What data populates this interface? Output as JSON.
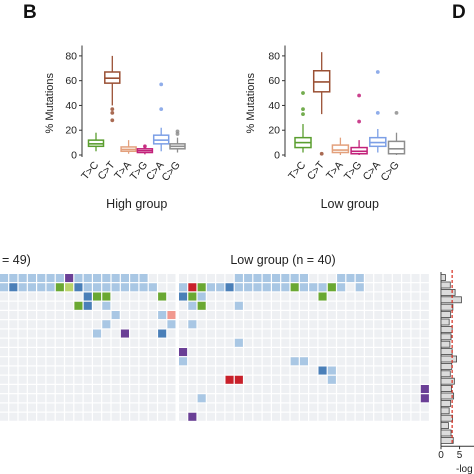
{
  "panel_b": {
    "letter": "B"
  },
  "panel_d": {
    "letter": "D"
  },
  "colors": {
    "T>C": "#5a9e2f",
    "C>T": "#9a5034",
    "T>A": "#e3a07c",
    "T>G": "#c2217a",
    "C>A": "#7c9fe6",
    "C>G": "#8e8e8e",
    "heat_empty": "#eef0f3",
    "heat_light": "#a9c7e4",
    "heat_mid": "#4a7fb8",
    "heat_green": "#6aa832",
    "heat_purple": "#6a3f96",
    "heat_red": "#c8202a",
    "heat_pink": "#f1998f",
    "heat_yellowgreen": "#b8d36a",
    "dashline": "#d62d20"
  },
  "chart_data": [
    {
      "type": "box",
      "title": "High group",
      "ylabel": "% Mutations",
      "ylim": [
        0,
        90
      ],
      "yticks": [
        0,
        20,
        40,
        60,
        80
      ],
      "categories": [
        "T>C",
        "C>T",
        "T>A",
        "T>G",
        "C>A",
        "C>G"
      ],
      "boxes": [
        {
          "min": 3,
          "q1": 7,
          "median": 9,
          "q3": 12,
          "max": 18,
          "outliers": []
        },
        {
          "min": 40,
          "q1": 58,
          "median": 62,
          "q3": 67,
          "max": 80,
          "outliers": [
            37,
            34,
            28
          ]
        },
        {
          "min": 1,
          "q1": 3,
          "median": 4.5,
          "q3": 6.5,
          "max": 12,
          "outliers": []
        },
        {
          "min": 0.5,
          "q1": 2,
          "median": 3.5,
          "q3": 5,
          "max": 8,
          "outliers": [
            7
          ]
        },
        {
          "min": 3,
          "q1": 9,
          "median": 12,
          "q3": 16,
          "max": 22,
          "outliers": [
            57,
            37
          ]
        },
        {
          "min": 2,
          "q1": 5,
          "median": 7,
          "q3": 9,
          "max": 14,
          "outliers": [
            19,
            17
          ]
        }
      ]
    },
    {
      "type": "box",
      "title": "Low group",
      "ylabel": "% Mutations",
      "ylim": [
        0,
        90
      ],
      "yticks": [
        0,
        20,
        40,
        60,
        80
      ],
      "categories": [
        "T>C",
        "C>T",
        "T>A",
        "T>G",
        "C>A",
        "C>G"
      ],
      "boxes": [
        {
          "min": 2,
          "q1": 6,
          "median": 10,
          "q3": 14,
          "max": 25,
          "outliers": [
            50,
            37,
            33
          ]
        },
        {
          "min": 33,
          "q1": 51,
          "median": 59,
          "q3": 68,
          "max": 83,
          "outliers": [
            1
          ]
        },
        {
          "min": 0,
          "q1": 2,
          "median": 4,
          "q3": 8,
          "max": 14,
          "outliers": []
        },
        {
          "min": 0,
          "q1": 1,
          "median": 3,
          "q3": 6,
          "max": 12,
          "outliers": [
            48,
            27
          ]
        },
        {
          "min": 2,
          "q1": 7,
          "median": 10,
          "q3": 14,
          "max": 21,
          "outliers": [
            67,
            34
          ]
        },
        {
          "min": 0,
          "q1": 1,
          "median": 5,
          "q3": 11,
          "max": 18,
          "outliers": [
            34
          ]
        }
      ]
    },
    {
      "type": "heatmap",
      "titles": [
        "= 49)",
        "Low group (n = 40)"
      ],
      "n_rows": 16,
      "left_cols": 19,
      "right_cols": 27,
      "cells": [
        {
          "g": "L",
          "r": 0,
          "c": 0,
          "k": "light"
        },
        {
          "g": "L",
          "r": 0,
          "c": 1,
          "k": "light"
        },
        {
          "g": "L",
          "r": 0,
          "c": 2,
          "k": "light"
        },
        {
          "g": "L",
          "r": 0,
          "c": 3,
          "k": "light"
        },
        {
          "g": "L",
          "r": 0,
          "c": 4,
          "k": "light"
        },
        {
          "g": "L",
          "r": 0,
          "c": 5,
          "k": "light"
        },
        {
          "g": "L",
          "r": 0,
          "c": 6,
          "k": "light"
        },
        {
          "g": "L",
          "r": 0,
          "c": 7,
          "k": "purple"
        },
        {
          "g": "L",
          "r": 0,
          "c": 8,
          "k": "light"
        },
        {
          "g": "L",
          "r": 0,
          "c": 9,
          "k": "light"
        },
        {
          "g": "L",
          "r": 0,
          "c": 10,
          "k": "light"
        },
        {
          "g": "L",
          "r": 0,
          "c": 11,
          "k": "light"
        },
        {
          "g": "L",
          "r": 0,
          "c": 12,
          "k": "light"
        },
        {
          "g": "L",
          "r": 0,
          "c": 13,
          "k": "light"
        },
        {
          "g": "L",
          "r": 0,
          "c": 14,
          "k": "light"
        },
        {
          "g": "L",
          "r": 0,
          "c": 15,
          "k": "light"
        },
        {
          "g": "L",
          "r": 1,
          "c": 0,
          "k": "light"
        },
        {
          "g": "L",
          "r": 1,
          "c": 1,
          "k": "mid"
        },
        {
          "g": "L",
          "r": 1,
          "c": 2,
          "k": "light"
        },
        {
          "g": "L",
          "r": 1,
          "c": 3,
          "k": "light"
        },
        {
          "g": "L",
          "r": 1,
          "c": 4,
          "k": "light"
        },
        {
          "g": "L",
          "r": 1,
          "c": 5,
          "k": "light"
        },
        {
          "g": "L",
          "r": 1,
          "c": 6,
          "k": "green"
        },
        {
          "g": "L",
          "r": 1,
          "c": 7,
          "k": "yellowgreen"
        },
        {
          "g": "L",
          "r": 1,
          "c": 8,
          "k": "mid"
        },
        {
          "g": "L",
          "r": 1,
          "c": 9,
          "k": "light"
        },
        {
          "g": "L",
          "r": 1,
          "c": 10,
          "k": "light"
        },
        {
          "g": "L",
          "r": 1,
          "c": 11,
          "k": "light"
        },
        {
          "g": "L",
          "r": 1,
          "c": 12,
          "k": "light"
        },
        {
          "g": "L",
          "r": 1,
          "c": 13,
          "k": "light"
        },
        {
          "g": "L",
          "r": 1,
          "c": 14,
          "k": "light"
        },
        {
          "g": "L",
          "r": 1,
          "c": 15,
          "k": "light"
        },
        {
          "g": "L",
          "r": 1,
          "c": 16,
          "k": "light"
        },
        {
          "g": "L",
          "r": 2,
          "c": 9,
          "k": "mid"
        },
        {
          "g": "L",
          "r": 2,
          "c": 10,
          "k": "green"
        },
        {
          "g": "L",
          "r": 2,
          "c": 11,
          "k": "green"
        },
        {
          "g": "L",
          "r": 2,
          "c": 17,
          "k": "green"
        },
        {
          "g": "L",
          "r": 3,
          "c": 8,
          "k": "green"
        },
        {
          "g": "L",
          "r": 3,
          "c": 9,
          "k": "mid"
        },
        {
          "g": "L",
          "r": 3,
          "c": 11,
          "k": "light"
        },
        {
          "g": "L",
          "r": 4,
          "c": 12,
          "k": "light"
        },
        {
          "g": "L",
          "r": 4,
          "c": 17,
          "k": "light"
        },
        {
          "g": "L",
          "r": 4,
          "c": 18,
          "k": "pink"
        },
        {
          "g": "L",
          "r": 5,
          "c": 11,
          "k": "light"
        },
        {
          "g": "L",
          "r": 5,
          "c": 18,
          "k": "light"
        },
        {
          "g": "L",
          "r": 6,
          "c": 10,
          "k": "light"
        },
        {
          "g": "L",
          "r": 6,
          "c": 13,
          "k": "purple"
        },
        {
          "g": "L",
          "r": 6,
          "c": 17,
          "k": "mid"
        },
        {
          "g": "R",
          "r": 0,
          "c": 6,
          "k": "light"
        },
        {
          "g": "R",
          "r": 0,
          "c": 7,
          "k": "light"
        },
        {
          "g": "R",
          "r": 0,
          "c": 8,
          "k": "light"
        },
        {
          "g": "R",
          "r": 0,
          "c": 9,
          "k": "light"
        },
        {
          "g": "R",
          "r": 0,
          "c": 10,
          "k": "light"
        },
        {
          "g": "R",
          "r": 0,
          "c": 11,
          "k": "light"
        },
        {
          "g": "R",
          "r": 0,
          "c": 12,
          "k": "light"
        },
        {
          "g": "R",
          "r": 0,
          "c": 13,
          "k": "light"
        },
        {
          "g": "R",
          "r": 0,
          "c": 17,
          "k": "light"
        },
        {
          "g": "R",
          "r": 0,
          "c": 18,
          "k": "light"
        },
        {
          "g": "R",
          "r": 0,
          "c": 19,
          "k": "light"
        },
        {
          "g": "R",
          "r": 1,
          "c": 0,
          "k": "light"
        },
        {
          "g": "R",
          "r": 1,
          "c": 1,
          "k": "red"
        },
        {
          "g": "R",
          "r": 1,
          "c": 2,
          "k": "green"
        },
        {
          "g": "R",
          "r": 1,
          "c": 3,
          "k": "light"
        },
        {
          "g": "R",
          "r": 1,
          "c": 4,
          "k": "light"
        },
        {
          "g": "R",
          "r": 1,
          "c": 5,
          "k": "mid"
        },
        {
          "g": "R",
          "r": 1,
          "c": 6,
          "k": "light"
        },
        {
          "g": "R",
          "r": 1,
          "c": 7,
          "k": "light"
        },
        {
          "g": "R",
          "r": 1,
          "c": 8,
          "k": "light"
        },
        {
          "g": "R",
          "r": 1,
          "c": 9,
          "k": "light"
        },
        {
          "g": "R",
          "r": 1,
          "c": 10,
          "k": "light"
        },
        {
          "g": "R",
          "r": 1,
          "c": 11,
          "k": "light"
        },
        {
          "g": "R",
          "r": 1,
          "c": 12,
          "k": "green"
        },
        {
          "g": "R",
          "r": 1,
          "c": 13,
          "k": "light"
        },
        {
          "g": "R",
          "r": 1,
          "c": 14,
          "k": "light"
        },
        {
          "g": "R",
          "r": 1,
          "c": 15,
          "k": "light"
        },
        {
          "g": "R",
          "r": 1,
          "c": 16,
          "k": "green"
        },
        {
          "g": "R",
          "r": 1,
          "c": 17,
          "k": "light"
        },
        {
          "g": "R",
          "r": 1,
          "c": 19,
          "k": "light"
        },
        {
          "g": "R",
          "r": 2,
          "c": 0,
          "k": "mid"
        },
        {
          "g": "R",
          "r": 2,
          "c": 1,
          "k": "green"
        },
        {
          "g": "R",
          "r": 2,
          "c": 2,
          "k": "light"
        },
        {
          "g": "R",
          "r": 2,
          "c": 15,
          "k": "green"
        },
        {
          "g": "R",
          "r": 3,
          "c": 1,
          "k": "light"
        },
        {
          "g": "R",
          "r": 3,
          "c": 2,
          "k": "green"
        },
        {
          "g": "R",
          "r": 3,
          "c": 6,
          "k": "light"
        },
        {
          "g": "R",
          "r": 5,
          "c": 1,
          "k": "light"
        },
        {
          "g": "R",
          "r": 7,
          "c": 6,
          "k": "light"
        },
        {
          "g": "R",
          "r": 8,
          "c": 0,
          "k": "purple"
        },
        {
          "g": "R",
          "r": 9,
          "c": 0,
          "k": "light"
        },
        {
          "g": "R",
          "r": 9,
          "c": 12,
          "k": "light"
        },
        {
          "g": "R",
          "r": 9,
          "c": 13,
          "k": "light"
        },
        {
          "g": "R",
          "r": 10,
          "c": 15,
          "k": "mid"
        },
        {
          "g": "R",
          "r": 10,
          "c": 16,
          "k": "light"
        },
        {
          "g": "R",
          "r": 11,
          "c": 5,
          "k": "red"
        },
        {
          "g": "R",
          "r": 11,
          "c": 6,
          "k": "red"
        },
        {
          "g": "R",
          "r": 11,
          "c": 16,
          "k": "light"
        },
        {
          "g": "R",
          "r": 12,
          "c": 26,
          "k": "purple"
        },
        {
          "g": "R",
          "r": 13,
          "c": 26,
          "k": "purple"
        },
        {
          "g": "R",
          "r": 13,
          "c": 2,
          "k": "light"
        },
        {
          "g": "R",
          "r": 15,
          "c": 1,
          "k": "purple"
        }
      ]
    },
    {
      "type": "bar",
      "orientation": "horizontal",
      "xlabel": "-log",
      "xticks": [
        0,
        5
      ],
      "xlim": [
        0,
        8
      ],
      "dashed_x": 3,
      "values": [
        1.2,
        2.5,
        3.8,
        5.5,
        3.2,
        2.6,
        2.2,
        3.0,
        2.7,
        2.4,
        3.0,
        4.2,
        2.9,
        2.5,
        3.6,
        2.8,
        3.4,
        2.6,
        2.2,
        3.1,
        2.0,
        2.7,
        3.3
      ]
    }
  ]
}
